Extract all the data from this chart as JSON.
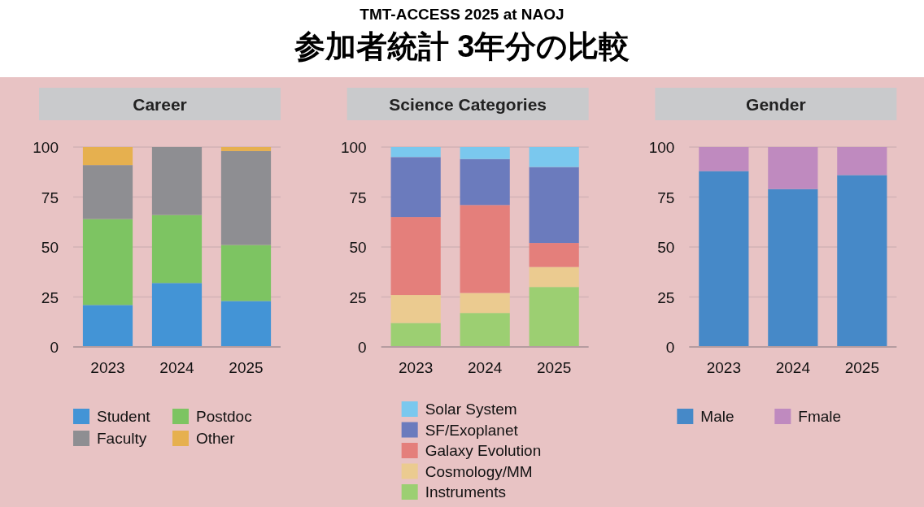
{
  "chart_data": [
    {
      "type": "other",
      "annotations": [
        "TMT-ACCESS 2025 at NAOJ",
        "参加者統計 3年分の比較"
      ]
    },
    {
      "type": "bar",
      "title": "Career",
      "categories": [
        "2023",
        "2024",
        "2025"
      ],
      "stacked": true,
      "ylim": [
        0,
        100
      ],
      "yticks": [
        0,
        25,
        50,
        75,
        100
      ],
      "grid": "y",
      "legend": "bottom",
      "series": [
        {
          "name": "Student",
          "color": "#4394d6",
          "values": [
            21,
            32,
            23
          ]
        },
        {
          "name": "Postdoc",
          "color": "#7dc462",
          "values": [
            43,
            34,
            28
          ]
        },
        {
          "name": "Faculty",
          "color": "#8e8e92",
          "values": [
            27,
            34,
            47
          ]
        },
        {
          "name": "Other",
          "color": "#e6b04f",
          "values": [
            9,
            0,
            2
          ]
        }
      ]
    },
    {
      "type": "bar",
      "title": "Science Categories",
      "categories": [
        "2023",
        "2024",
        "2025"
      ],
      "stacked": true,
      "ylim": [
        0,
        100
      ],
      "yticks": [
        0,
        25,
        50,
        75,
        100
      ],
      "grid": "y",
      "legend": "bottom",
      "series": [
        {
          "name": "Instruments",
          "color": "#9ccf72",
          "values": [
            12,
            17,
            30
          ]
        },
        {
          "name": "Cosmology/MM",
          "color": "#ebcb90",
          "values": [
            14,
            10,
            10
          ]
        },
        {
          "name": "Galaxy Evolution",
          "color": "#e47f7b",
          "values": [
            39,
            44,
            12
          ]
        },
        {
          "name": "SF/Exoplanet",
          "color": "#6b7bbd",
          "values": [
            30,
            23,
            38
          ]
        },
        {
          "name": "Solar System",
          "color": "#7ac8ee",
          "values": [
            5,
            6,
            10
          ]
        }
      ]
    },
    {
      "type": "bar",
      "title": "Gender",
      "categories": [
        "2023",
        "2024",
        "2025"
      ],
      "stacked": true,
      "ylim": [
        0,
        100
      ],
      "yticks": [
        0,
        25,
        50,
        75,
        100
      ],
      "grid": "y",
      "legend": "bottom",
      "series": [
        {
          "name": "Male",
          "color": "#4689c8",
          "values": [
            88,
            79,
            86
          ]
        },
        {
          "name": "Fmale",
          "color": "#bf8abf",
          "values": [
            12,
            21,
            14
          ]
        }
      ]
    }
  ]
}
